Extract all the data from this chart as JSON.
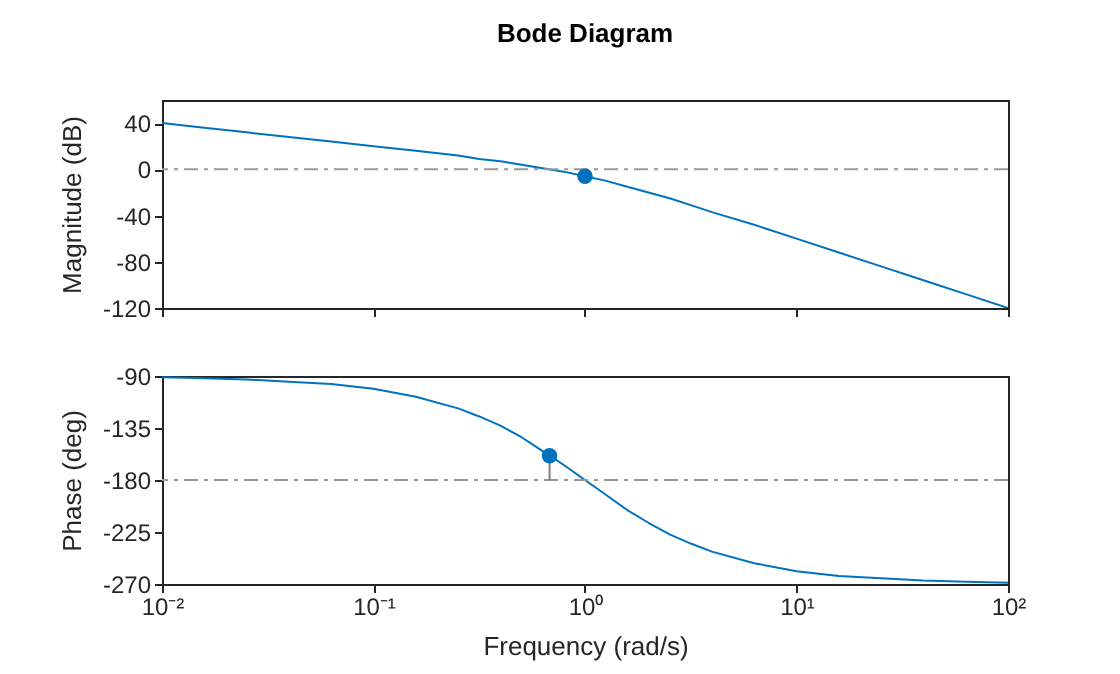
{
  "chart_data": [
    {
      "type": "line",
      "title": "Bode Diagram",
      "ylabel": "Magnitude (dB)",
      "log": "x",
      "tick_labels": "y",
      "x": [
        0.01,
        0.01585,
        0.02512,
        0.03981,
        0.0631,
        0.1,
        0.1585,
        0.2512,
        0.3162,
        0.3981,
        0.5012,
        0.631,
        0.7943,
        1,
        1.2589,
        1.585,
        1.995,
        2.512,
        3.162,
        3.981,
        6.31,
        10,
        15.85,
        25.12,
        39.81,
        63.1,
        100
      ],
      "series": [
        {
          "color": "#0072bd",
          "values": [
            40,
            36,
            32,
            28,
            24,
            20,
            16,
            12,
            9,
            7,
            4,
            1,
            -2,
            -6,
            -10,
            -15,
            -20,
            -25,
            -31,
            -37,
            -48,
            -60,
            -72,
            -84,
            -96,
            -108,
            -120
          ]
        },
        {
          "type": "scatter",
          "color": "#0072bd",
          "x": [
            1
          ],
          "values": [
            -6
          ]
        }
      ],
      "xlim": [
        0.01,
        100
      ],
      "xticks": [
        0.01,
        0.1,
        1,
        10,
        100
      ],
      "ylim": [
        -120,
        60
      ],
      "yticks": [
        -120,
        -80,
        -40,
        0,
        40
      ],
      "ref_lines": [
        {
          "axis": "y",
          "value": 0,
          "color": "#999999",
          "line_style": "dashdot"
        }
      ]
    },
    {
      "type": "line",
      "ylabel": "Phase (deg)",
      "xlabel": "Frequency (rad/s)",
      "log": "x",
      "x": [
        0.01,
        0.01585,
        0.02512,
        0.03981,
        0.0631,
        0.1,
        0.1585,
        0.2512,
        0.3162,
        0.3981,
        0.5012,
        0.631,
        0.7943,
        1,
        1.2589,
        1.585,
        1.995,
        2.512,
        3.162,
        3.981,
        6.31,
        10,
        15.85,
        25.12,
        39.81,
        63.1,
        100
      ],
      "series": [
        {
          "color": "#0072bd",
          "values": [
            -91,
            -92,
            -93,
            -95,
            -97,
            -101,
            -108,
            -118,
            -125,
            -133,
            -143,
            -155,
            -167,
            -180,
            -193,
            -206,
            -217,
            -227,
            -235,
            -242,
            -252,
            -259,
            -263,
            -265,
            -267,
            -268,
            -269
          ]
        },
        {
          "type": "scatter",
          "color": "#0072bd",
          "x": [
            0.68
          ],
          "values": [
            -159
          ],
          "errors": [
            [
              -180,
              -159
            ]
          ]
        }
      ],
      "xlim": [
        0.01,
        100
      ],
      "xticks": [
        {
          "value": 0.01,
          "label": "10⁻²"
        },
        {
          "value": 0.1,
          "label": "10⁻¹"
        },
        {
          "value": 1,
          "label": "10⁰"
        },
        {
          "value": 10,
          "label": "10¹"
        },
        {
          "value": 100,
          "label": "10²"
        }
      ],
      "ylim": [
        -270,
        -90
      ],
      "yticks": [
        -270,
        -225,
        -180,
        -135,
        -90
      ],
      "ref_lines": [
        {
          "axis": "y",
          "value": -180,
          "color": "#999999",
          "line_style": "dashdot"
        }
      ]
    }
  ]
}
